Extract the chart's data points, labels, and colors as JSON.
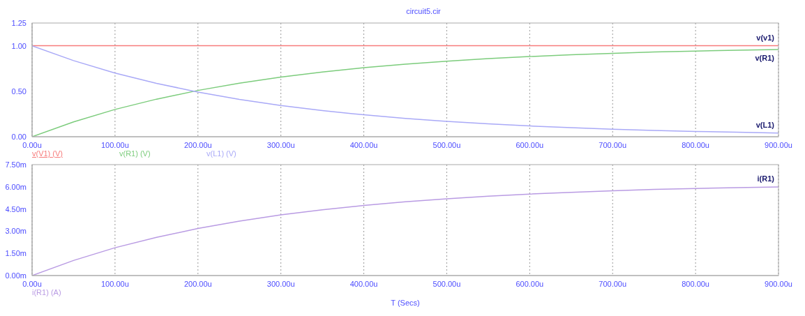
{
  "chart_data": [
    {
      "type": "line",
      "title": "circuit5.cir",
      "x": [
        0,
        50,
        100,
        150,
        200,
        250,
        300,
        350,
        400,
        450,
        500,
        550,
        600,
        650,
        700,
        750,
        800,
        850,
        900
      ],
      "series": [
        {
          "name": "v(V1) (V)",
          "color": "#f77b7b",
          "values": [
            1,
            1,
            1,
            1,
            1,
            1,
            1,
            1,
            1,
            1,
            1,
            1,
            1,
            1,
            1,
            1,
            1,
            1,
            1
          ]
        },
        {
          "name": "v(R1) (V)",
          "color": "#7ccc7c",
          "values": [
            0,
            0.163,
            0.3,
            0.413,
            0.509,
            0.589,
            0.656,
            0.712,
            0.759,
            0.798,
            0.831,
            0.859,
            0.882,
            0.901,
            0.917,
            0.931,
            0.942,
            0.951,
            0.959
          ]
        },
        {
          "name": "v(L1) (V)",
          "color": "#a9a9f7",
          "values": [
            1,
            0.837,
            0.7,
            0.587,
            0.491,
            0.411,
            0.344,
            0.288,
            0.241,
            0.202,
            0.169,
            0.141,
            0.118,
            0.099,
            0.083,
            0.069,
            0.058,
            0.049,
            0.041
          ]
        }
      ],
      "xlim": [
        0,
        900
      ],
      "xticks": [
        {
          "value": 0,
          "label": "0.00u"
        },
        {
          "value": 100,
          "label": "100.00u"
        },
        {
          "value": 200,
          "label": "200.00u"
        },
        {
          "value": 300,
          "label": "300.00u"
        },
        {
          "value": 400,
          "label": "400.00u"
        },
        {
          "value": 500,
          "label": "500.00u"
        },
        {
          "value": 600,
          "label": "600.00u"
        },
        {
          "value": 700,
          "label": "700.00u"
        },
        {
          "value": 800,
          "label": "800.00u"
        },
        {
          "value": 900,
          "label": "900.00u"
        }
      ],
      "ylim": [
        0,
        1.25
      ],
      "yticks": [
        {
          "value": 0,
          "label": "0.00"
        },
        {
          "value": 0.5,
          "label": "0.50"
        },
        {
          "value": 1,
          "label": "1.00"
        },
        {
          "value": 1.25,
          "label": "1.25"
        }
      ],
      "annotations": [
        "v(v1)",
        "v(R1)",
        "v(L1)"
      ],
      "grid": true,
      "legend": "bottom",
      "marker": "none",
      "line_style": "solid"
    },
    {
      "type": "line",
      "xlabel": "T (Secs)",
      "x": [
        0,
        50,
        100,
        150,
        200,
        250,
        300,
        350,
        400,
        450,
        500,
        550,
        600,
        650,
        700,
        750,
        800,
        850,
        900
      ],
      "series": [
        {
          "name": "i(R1) (A)",
          "color": "#b99be3",
          "values": [
            0,
            1.02,
            1.88,
            2.58,
            3.18,
            3.68,
            4.1,
            4.45,
            4.74,
            4.99,
            5.19,
            5.37,
            5.51,
            5.63,
            5.73,
            5.82,
            5.89,
            5.94,
            5.99
          ]
        }
      ],
      "xlim": [
        0,
        900
      ],
      "xticks": [
        {
          "value": 0,
          "label": "0.00u"
        },
        {
          "value": 100,
          "label": "100.00u"
        },
        {
          "value": 200,
          "label": "200.00u"
        },
        {
          "value": 300,
          "label": "300.00u"
        },
        {
          "value": 400,
          "label": "400.00u"
        },
        {
          "value": 500,
          "label": "500.00u"
        },
        {
          "value": 600,
          "label": "600.00u"
        },
        {
          "value": 700,
          "label": "700.00u"
        },
        {
          "value": 800,
          "label": "800.00u"
        },
        {
          "value": 900,
          "label": "900.00u"
        }
      ],
      "ylim": [
        0,
        7.5
      ],
      "yticks": [
        {
          "value": 0,
          "label": "0.00m"
        },
        {
          "value": 1.5,
          "label": "1.50m"
        },
        {
          "value": 3,
          "label": "3.00m"
        },
        {
          "value": 4.5,
          "label": "4.50m"
        },
        {
          "value": 6,
          "label": "6.00m"
        },
        {
          "value": 7.5,
          "label": "7.50m"
        }
      ],
      "annotations": [
        "i(R1)"
      ],
      "grid": true,
      "legend": "bottom",
      "marker": "none",
      "line_style": "solid"
    }
  ]
}
